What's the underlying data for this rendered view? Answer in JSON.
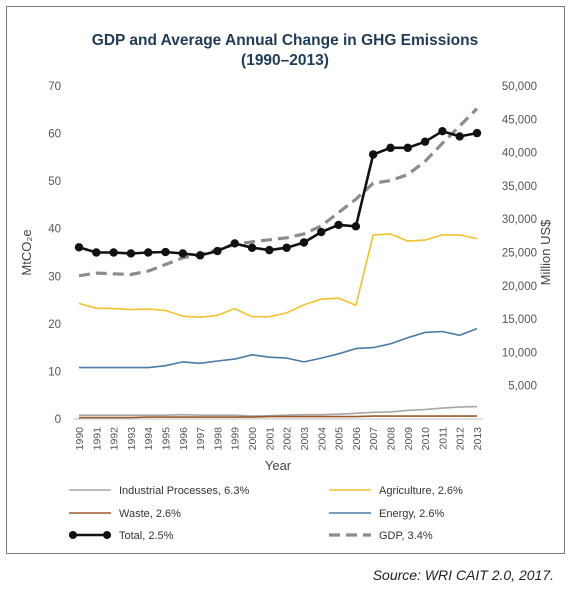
{
  "chart_data": {
    "type": "line",
    "title_line1": "GDP and Average Annual Change in GHG Emissions",
    "title_line2": "(1990–2013)",
    "xlabel": "Year",
    "ylabel_left": "MtCO₂e",
    "ylabel_right": "Million US$",
    "ylim_left": [
      0,
      70
    ],
    "ylim_right": [
      0,
      50000
    ],
    "yticks_left": [
      "0",
      "10",
      "20",
      "30",
      "40",
      "50",
      "60",
      "70"
    ],
    "yticks_right": [
      "",
      "5,000",
      "10,000",
      "15,000",
      "20,000",
      "25,000",
      "30,000",
      "35,000",
      "40,000",
      "45,000",
      "50,000"
    ],
    "x": [
      "1990",
      "1991",
      "1992",
      "1993",
      "1994",
      "1995",
      "1996",
      "1997",
      "1998",
      "1999",
      "2000",
      "2001",
      "2002",
      "2003",
      "2004",
      "2005",
      "2006",
      "2007",
      "2008",
      "2009",
      "2010",
      "2011",
      "2012",
      "2013"
    ],
    "grid": "none",
    "legend_position": "bottom",
    "series": [
      {
        "name": "Industrial Processes, 6.3%",
        "axis": "left",
        "color": "#a6a6a6",
        "style": "solid",
        "values": [
          0.8,
          0.8,
          0.8,
          0.8,
          0.8,
          0.8,
          0.9,
          0.8,
          0.8,
          0.8,
          0.6,
          0.7,
          0.8,
          0.9,
          0.9,
          1.0,
          1.2,
          1.4,
          1.5,
          1.8,
          2.0,
          2.3,
          2.5,
          2.6
        ]
      },
      {
        "name": "Agriculture, 2.6%",
        "axis": "left",
        "color": "#f2c12e",
        "style": "solid",
        "values": [
          24.3,
          23.3,
          23.2,
          23.0,
          23.1,
          22.8,
          21.6,
          21.4,
          21.8,
          23.2,
          21.5,
          21.5,
          22.3,
          24.0,
          25.2,
          25.4,
          23.9,
          38.7,
          38.9,
          37.4,
          37.6,
          38.7,
          38.7,
          37.9
        ]
      },
      {
        "name": "Waste, 2.6%",
        "axis": "left",
        "color": "#9b5a2a",
        "style": "solid",
        "values": [
          0.3,
          0.3,
          0.3,
          0.3,
          0.4,
          0.4,
          0.4,
          0.4,
          0.4,
          0.4,
          0.4,
          0.5,
          0.5,
          0.5,
          0.5,
          0.5,
          0.5,
          0.6,
          0.6,
          0.6,
          0.6,
          0.6,
          0.6,
          0.6
        ]
      },
      {
        "name": "Energy, 2.6%",
        "axis": "left",
        "color": "#4a7ba7",
        "style": "solid",
        "values": [
          10.8,
          10.8,
          10.8,
          10.8,
          10.8,
          11.2,
          12.0,
          11.7,
          12.2,
          12.6,
          13.5,
          13.0,
          12.8,
          12.0,
          12.8,
          13.7,
          14.8,
          15.0,
          15.8,
          17.1,
          18.2,
          18.4,
          17.6,
          19.0
        ]
      },
      {
        "name": "Total, 2.5%",
        "axis": "left",
        "color": "#111111",
        "style": "markers",
        "values": [
          36.1,
          35.0,
          35.0,
          34.8,
          35.0,
          35.1,
          34.8,
          34.4,
          35.3,
          36.9,
          36.0,
          35.5,
          36.0,
          37.1,
          39.3,
          40.8,
          40.5,
          55.6,
          57.0,
          57.0,
          58.3,
          60.5,
          59.4,
          60.1
        ]
      },
      {
        "name": "GDP,  3.4%",
        "axis": "right",
        "color": "#8c8c8c",
        "style": "dashed",
        "values": [
          21500,
          21900,
          21800,
          21700,
          22200,
          23200,
          24200,
          24700,
          25400,
          26200,
          26600,
          26900,
          27200,
          27800,
          29000,
          31000,
          33000,
          35400,
          35800,
          36700,
          38700,
          41400,
          44000,
          46600
        ]
      }
    ]
  },
  "source": "Source: WRI CAIT 2.0, 2017."
}
